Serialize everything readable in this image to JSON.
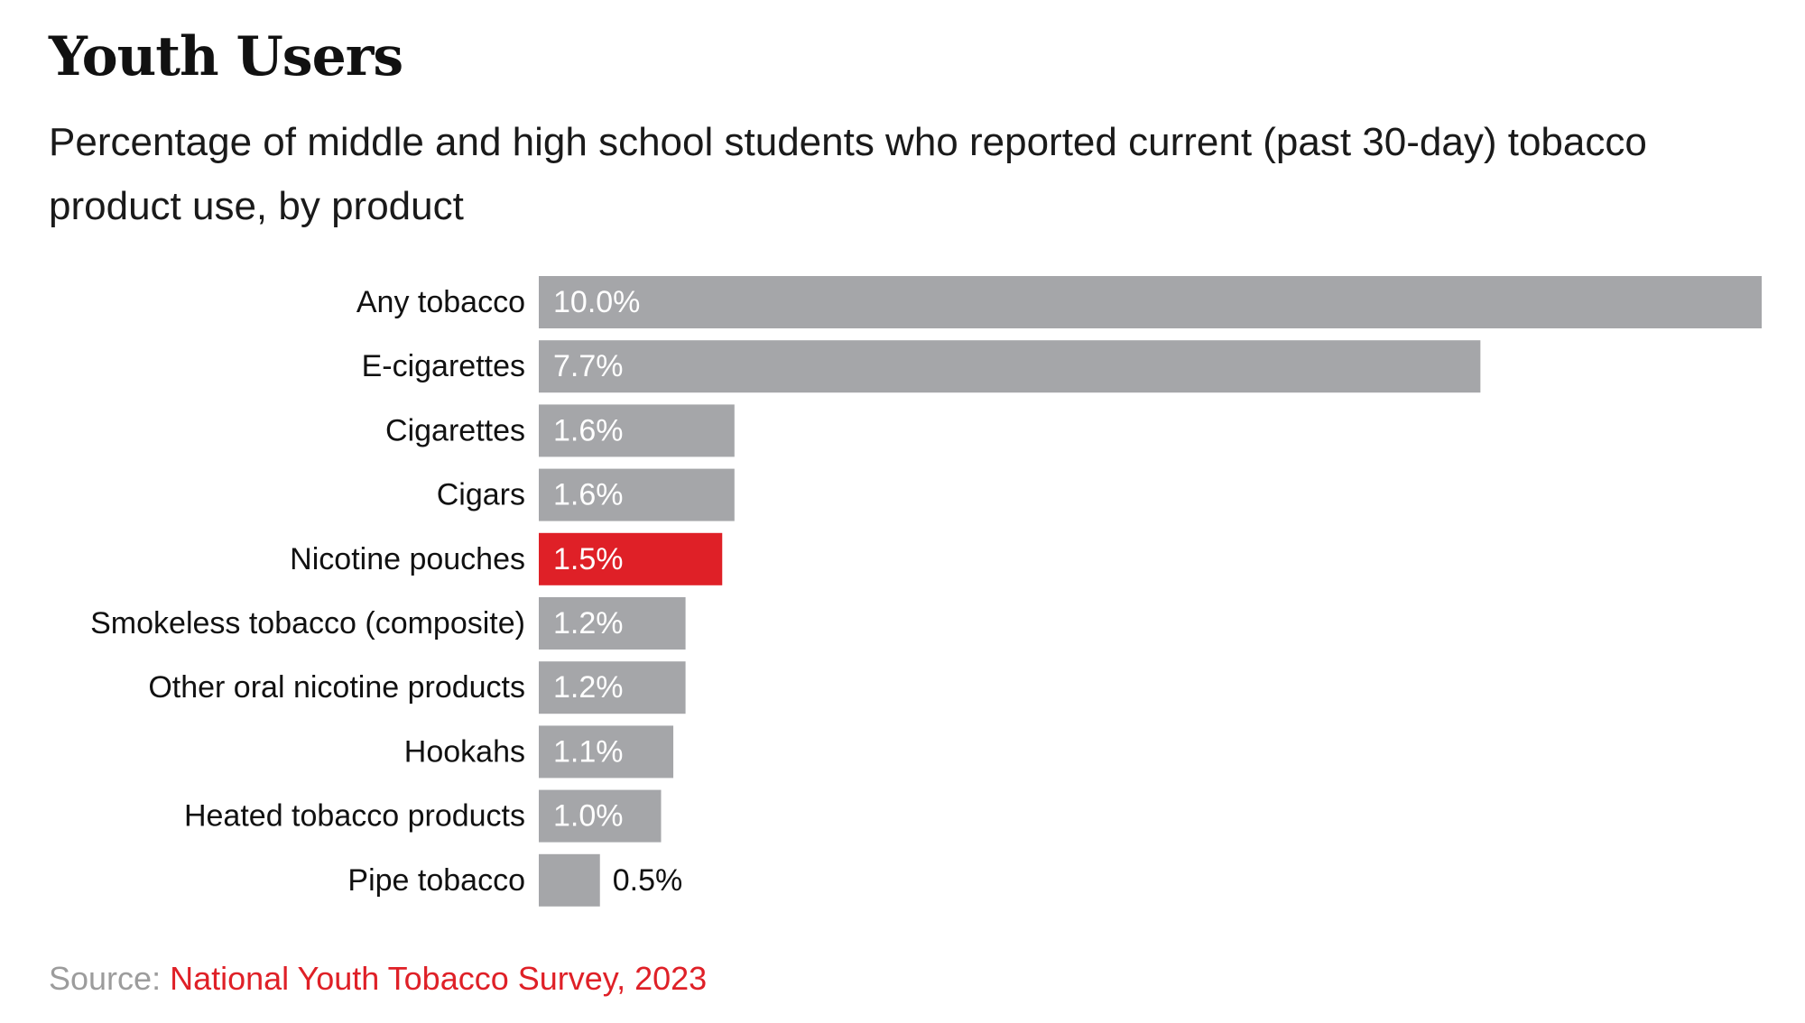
{
  "colors": {
    "bar_default": "#a5a6a9",
    "bar_highlight": "#df2027",
    "label_text": "#111111",
    "value_text_inside": "#ffffff",
    "value_text_outside": "#111111",
    "source_label": "#9c9c9c",
    "source_link": "#df2027"
  },
  "chart_data": {
    "type": "bar",
    "orientation": "horizontal",
    "title": "Youth Users",
    "subtitle": "Percentage of middle and high school students who reported current (past 30-day) tobacco product use, by product",
    "categories": [
      "Any tobacco",
      "E-cigarettes",
      "Cigarettes",
      "Cigars",
      "Nicotine pouches",
      "Smokeless tobacco (composite)",
      "Other oral nicotine products",
      "Hookahs",
      "Heated tobacco products",
      "Pipe tobacco"
    ],
    "values": [
      10.0,
      7.7,
      1.6,
      1.6,
      1.5,
      1.2,
      1.2,
      1.1,
      1.0,
      0.5
    ],
    "value_labels": [
      "10.0%",
      "7.7%",
      "1.6%",
      "1.6%",
      "1.5%",
      "1.2%",
      "1.2%",
      "1.1%",
      "1.0%",
      "0.5%"
    ],
    "highlight_category": "Nicotine pouches",
    "xlim": [
      0,
      10
    ],
    "grid": false,
    "legend": "none"
  },
  "footer": {
    "source_label": "Source:",
    "source_link_text": "National Youth Tobacco Survey, 2023"
  }
}
